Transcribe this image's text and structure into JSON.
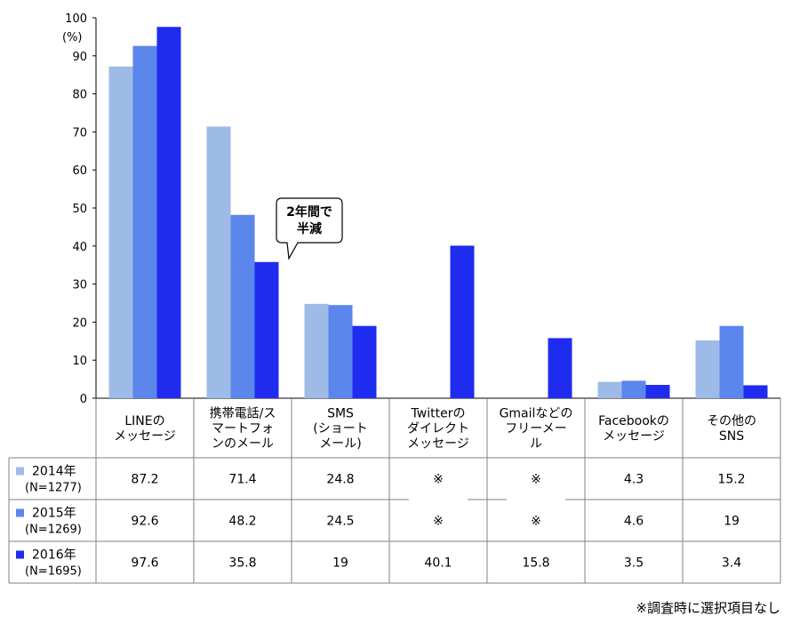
{
  "chart_data": {
    "type": "bar",
    "y_unit": "(%)",
    "ylim": [
      0,
      100
    ],
    "yticks": [
      0,
      10,
      20,
      30,
      40,
      50,
      60,
      70,
      80,
      90,
      100
    ],
    "categories": [
      [
        "LINEの",
        "メッセージ"
      ],
      [
        "携帯電話/ス",
        "マートフォ",
        "ンのメール"
      ],
      [
        "SMS",
        "(ショート",
        "メール)"
      ],
      [
        "Twitterの",
        "ダイレクト",
        "メッセージ"
      ],
      [
        "Gmailなどの",
        "フリーメー",
        "ル"
      ],
      [
        "Facebookの",
        "メッセージ"
      ],
      [
        "その他の",
        "SNS"
      ]
    ],
    "series": [
      {
        "name": "2014年",
        "n": "(N=1277)",
        "color": "#9dbbe6",
        "values": [
          87.2,
          71.4,
          24.8,
          null,
          null,
          4.3,
          15.2
        ],
        "labels": [
          "87.2",
          "71.4",
          "24.8",
          "※",
          "※",
          "4.3",
          "15.2"
        ]
      },
      {
        "name": "2015年",
        "n": "(N=1269)",
        "color": "#5b86ec",
        "values": [
          92.6,
          48.2,
          24.5,
          null,
          null,
          4.6,
          19
        ],
        "labels": [
          "92.6",
          "48.2",
          "24.5",
          "※",
          "※",
          "4.6",
          "19"
        ]
      },
      {
        "name": "2016年",
        "n": "(N=1695)",
        "color": "#1f2cf0",
        "values": [
          97.6,
          35.8,
          19,
          40.1,
          15.8,
          3.5,
          3.4
        ],
        "labels": [
          "97.6",
          "35.8",
          "19",
          "40.1",
          "15.8",
          "3.5",
          "3.4"
        ]
      }
    ],
    "callout": [
      "2年間で",
      "半減"
    ],
    "grid": false
  },
  "footnote": "※調査時に選択項目なし"
}
